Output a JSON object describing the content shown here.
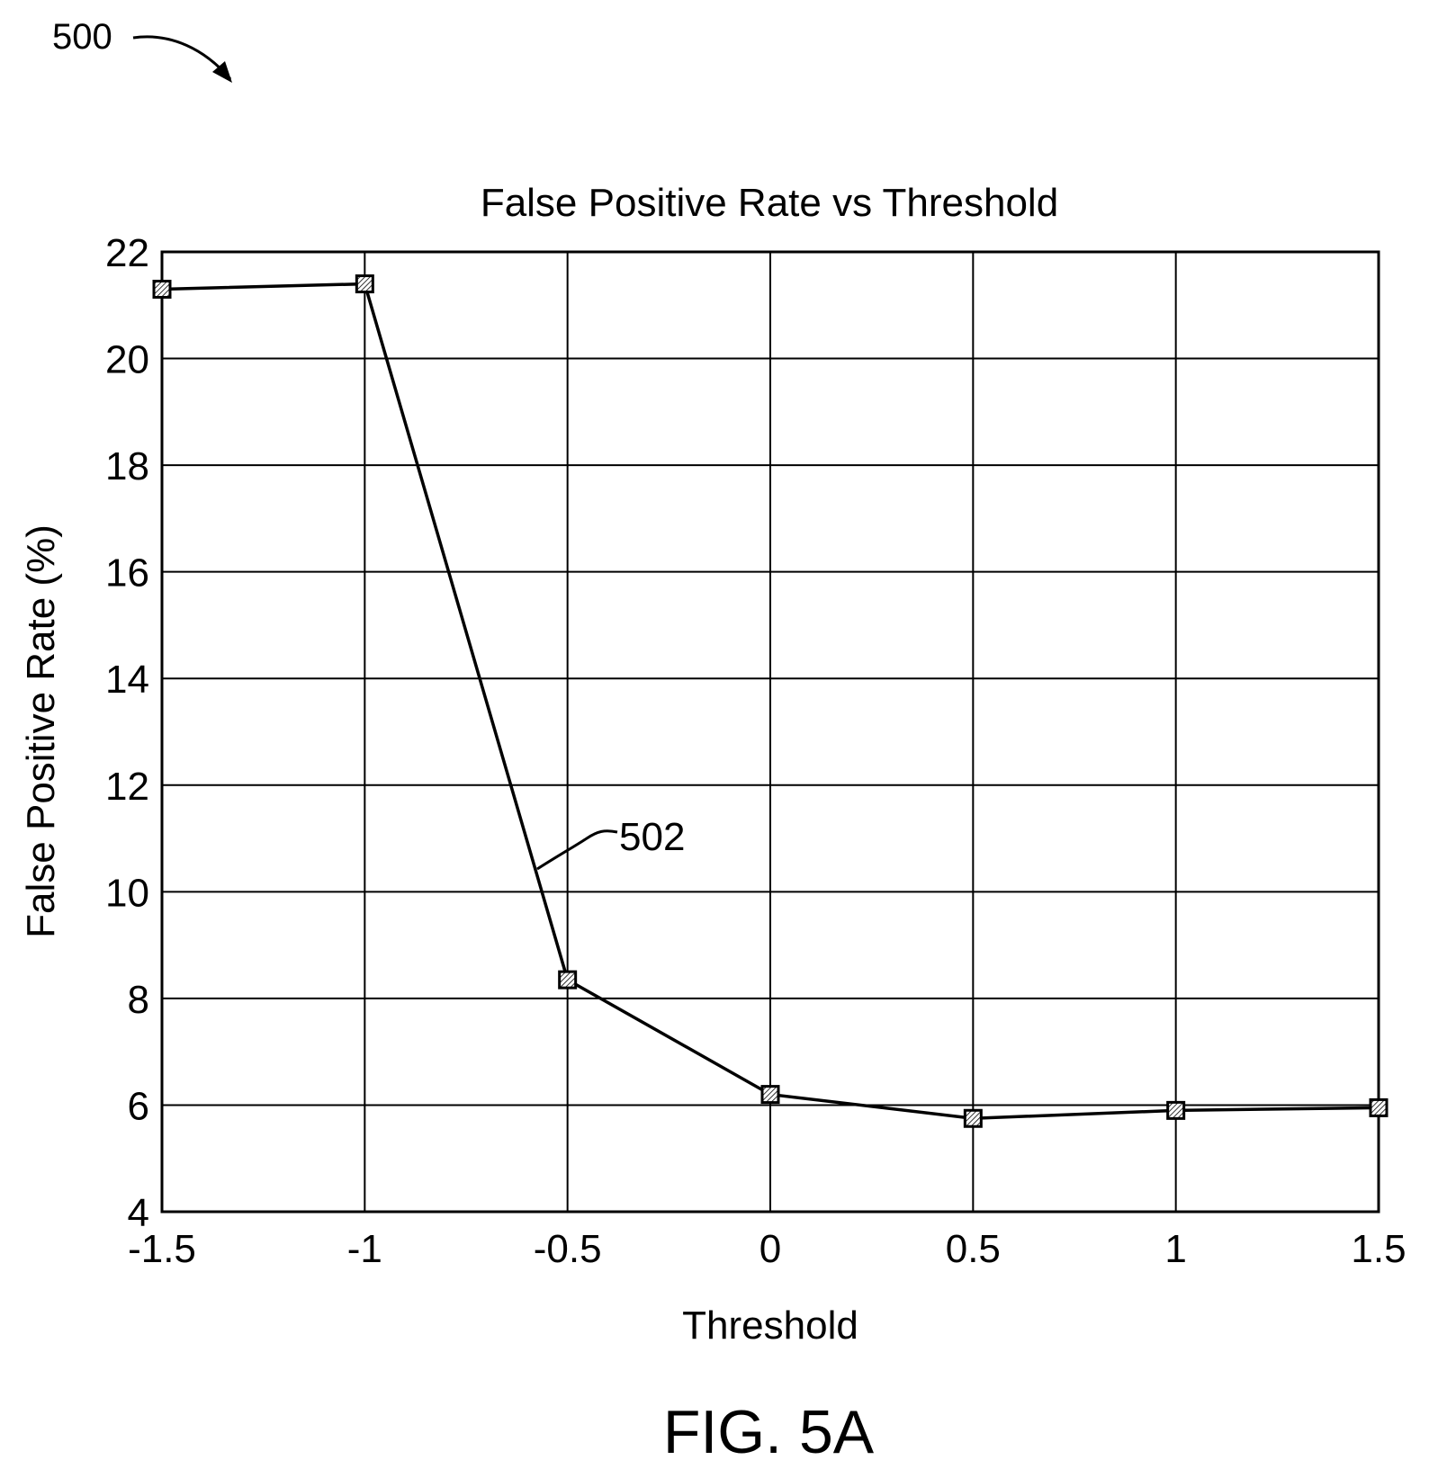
{
  "figure": {
    "ref_number": "500",
    "caption": "FIG. 5A",
    "series_ref": "502"
  },
  "chart_data": {
    "type": "line",
    "title": "False Positive Rate vs Threshold",
    "xlabel": "Threshold",
    "ylabel": "False Positive Rate (%)",
    "xlim": [
      -1.5,
      1.5
    ],
    "ylim": [
      4,
      22
    ],
    "xticks": [
      -1.5,
      -1,
      -0.5,
      0,
      0.5,
      1,
      1.5
    ],
    "xtick_labels": [
      "-1.5",
      "-1",
      "-0.5",
      "0",
      "0.5",
      "1",
      "1.5"
    ],
    "yticks": [
      4,
      6,
      8,
      10,
      12,
      14,
      16,
      18,
      20,
      22
    ],
    "ytick_labels": [
      "4",
      "6",
      "8",
      "10",
      "12",
      "14",
      "16",
      "18",
      "20",
      "22"
    ],
    "grid": true,
    "marker": "hatched-square",
    "series": [
      {
        "x": [
          -1.5,
          -1,
          -0.5,
          0,
          0.5,
          1,
          1.5
        ],
        "y": [
          21.3,
          21.4,
          8.35,
          6.2,
          5.75,
          5.9,
          5.95
        ]
      }
    ]
  }
}
